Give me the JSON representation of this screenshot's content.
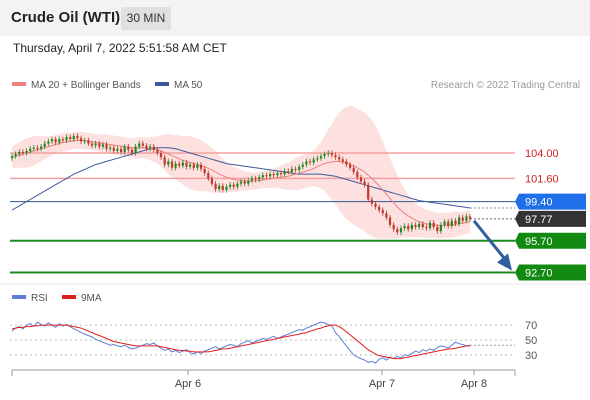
{
  "header": {
    "title": "Crude Oil (WTI)",
    "timeframe": "30 MIN",
    "datetime": "Thursday, April 7, 2022 5:51:58 AM CET"
  },
  "legend": {
    "ma20": "MA 20 + Bollinger Bands",
    "ma50": "MA 50",
    "credit": "Research © 2022 Trading Central",
    "rsi": "RSI",
    "rsi_ma": "9MA"
  },
  "colors": {
    "ma20": "#f08080",
    "ma50": "#3c5a9a",
    "band": "#fde0e0",
    "resistance": "#f5a0a0",
    "pivot": "#2b5797",
    "support": "#1e8a1e",
    "current": "#333333",
    "arrow": "#2f5f9e",
    "rsi": "#5b7fd6",
    "rsi_ma": "#e02020",
    "candle_up": "#1e8a1e",
    "candle_down": "#c0392b"
  },
  "chart_data": [
    {
      "type": "candlestick",
      "title": "",
      "ylim": [
        91.8,
        109.2
      ],
      "x_ticks": [
        "Apr 6",
        "Apr 7",
        "Apr 8"
      ],
      "levels": [
        {
          "name": "r2",
          "value": 104.0,
          "label": "104.00",
          "kind": "resistance"
        },
        {
          "name": "r1",
          "value": 101.6,
          "label": "101.60",
          "kind": "resistance"
        },
        {
          "name": "pivot",
          "value": 99.4,
          "label": "99.40",
          "kind": "pivot"
        },
        {
          "name": "current",
          "value": 97.77,
          "label": "97.77",
          "kind": "current"
        },
        {
          "name": "s1",
          "value": 95.7,
          "label": "95.70",
          "kind": "support"
        },
        {
          "name": "s2",
          "value": 92.7,
          "label": "92.70",
          "kind": "support"
        }
      ],
      "close": [
        103.7,
        103.9,
        104.1,
        104.0,
        104.2,
        104.4,
        104.5,
        104.4,
        104.6,
        104.9,
        105.1,
        105.3,
        105.0,
        105.3,
        105.2,
        105.5,
        105.3,
        105.6,
        105.4,
        105.1,
        105.2,
        104.9,
        104.7,
        104.9,
        104.6,
        104.8,
        104.4,
        104.5,
        104.2,
        104.4,
        104.1,
        104.6,
        104.3,
        104.0,
        104.6,
        104.9,
        104.7,
        104.4,
        104.6,
        104.3,
        104.0,
        103.6,
        102.9,
        103.2,
        102.6,
        103.0,
        102.8,
        103.1,
        102.7,
        102.9,
        102.6,
        102.9,
        102.5,
        102.1,
        101.6,
        101.1,
        100.6,
        100.9,
        100.5,
        100.8,
        101.0,
        100.8,
        101.1,
        101.3,
        101.1,
        101.4,
        101.6,
        101.5,
        101.7,
        101.9,
        101.8,
        102.0,
        101.9,
        102.1,
        102.0,
        102.3,
        102.2,
        102.5,
        102.4,
        102.7,
        102.9,
        103.2,
        103.1,
        103.4,
        103.5,
        103.7,
        103.9,
        104.0,
        103.8,
        103.6,
        103.4,
        103.2,
        102.9,
        102.6,
        102.2,
        101.7,
        101.3,
        101.0,
        99.6,
        99.2,
        98.9,
        98.6,
        98.3,
        97.9,
        97.2,
        96.8,
        96.5,
        96.9,
        97.1,
        96.8,
        97.2,
        97.0,
        97.3,
        97.0,
        96.9,
        97.4,
        97.0,
        96.6,
        97.2,
        97.5,
        97.1,
        97.6,
        97.3,
        97.9,
        97.6,
        98.0,
        97.77
      ],
      "ma20": [
        103.6,
        103.7,
        103.8,
        103.9,
        104.0,
        104.1,
        104.2,
        104.3,
        104.4,
        104.5,
        104.6,
        104.7,
        104.8,
        104.9,
        105.0,
        105.05,
        105.1,
        105.15,
        105.2,
        105.2,
        105.15,
        105.1,
        105.05,
        105.0,
        104.95,
        104.9,
        104.85,
        104.8,
        104.75,
        104.7,
        104.65,
        104.6,
        104.55,
        104.5,
        104.45,
        104.5,
        104.5,
        104.45,
        104.4,
        104.35,
        104.3,
        104.2,
        104.05,
        103.9,
        103.75,
        103.6,
        103.45,
        103.3,
        103.2,
        103.1,
        103.0,
        102.9,
        102.8,
        102.7,
        102.55,
        102.4,
        102.2,
        102.0,
        101.85,
        101.7,
        101.6,
        101.5,
        101.45,
        101.4,
        101.35,
        101.35,
        101.35,
        101.35,
        101.4,
        101.45,
        101.5,
        101.55,
        101.6,
        101.65,
        101.7,
        101.75,
        101.8,
        101.9,
        102.0,
        102.1,
        102.2,
        102.3,
        102.4,
        102.55,
        102.7,
        102.85,
        103.0,
        103.1,
        103.15,
        103.2,
        103.2,
        103.15,
        103.05,
        102.95,
        102.8,
        102.6,
        102.4,
        102.2,
        101.9,
        101.6,
        101.25,
        100.9,
        100.5,
        100.1,
        99.7,
        99.3,
        98.9,
        98.6,
        98.3,
        98.05,
        97.85,
        97.65,
        97.5,
        97.4,
        97.3,
        97.25,
        97.2,
        97.15,
        97.15,
        97.15,
        97.15,
        97.2,
        97.25,
        97.3,
        97.35,
        97.45,
        97.5
      ],
      "ma50": [
        98.6,
        98.8,
        99.0,
        99.2,
        99.4,
        99.6,
        99.8,
        100.0,
        100.2,
        100.4,
        100.6,
        100.8,
        101.0,
        101.2,
        101.4,
        101.6,
        101.8,
        102.0,
        102.15,
        102.3,
        102.45,
        102.6,
        102.75,
        102.9,
        103.0,
        103.1,
        103.2,
        103.3,
        103.4,
        103.5,
        103.6,
        103.7,
        103.8,
        103.9,
        104.0,
        104.1,
        104.2,
        104.3,
        104.4,
        104.45,
        104.5,
        104.5,
        104.5,
        104.5,
        104.45,
        104.4,
        104.3,
        104.2,
        104.1,
        104.0,
        103.9,
        103.8,
        103.7,
        103.6,
        103.5,
        103.4,
        103.3,
        103.2,
        103.1,
        103.0,
        102.95,
        102.9,
        102.85,
        102.8,
        102.75,
        102.7,
        102.65,
        102.6,
        102.55,
        102.5,
        102.45,
        102.4,
        102.35,
        102.3,
        102.25,
        102.2,
        102.15,
        102.1,
        102.05,
        102.0,
        102.0,
        102.0,
        102.0,
        102.0,
        102.0,
        102.0,
        101.95,
        101.9,
        101.85,
        101.8,
        101.7,
        101.6,
        101.5,
        101.4,
        101.3,
        101.2,
        101.1,
        101.0,
        100.9,
        100.8,
        100.7,
        100.6,
        100.5,
        100.4,
        100.3,
        100.2,
        100.1,
        100.0,
        99.9,
        99.8,
        99.7,
        99.6,
        99.5,
        99.45,
        99.4,
        99.35,
        99.3,
        99.25,
        99.2,
        99.15,
        99.1,
        99.05,
        99.0,
        98.95,
        98.9,
        98.85,
        98.8
      ],
      "band_width": [
        1.0,
        1.1,
        1.2,
        1.3,
        1.4,
        1.4,
        1.4,
        1.3,
        1.2,
        1.1,
        1.0,
        0.9,
        0.9,
        0.9,
        0.9,
        0.9,
        0.8,
        0.8,
        0.8,
        0.8,
        0.8,
        0.8,
        0.8,
        0.8,
        0.8,
        0.9,
        0.9,
        0.9,
        0.9,
        0.9,
        0.9,
        0.9,
        0.9,
        0.9,
        1.0,
        1.0,
        1.0,
        1.0,
        1.1,
        1.2,
        1.3,
        1.5,
        1.7,
        1.9,
        2.0,
        2.1,
        2.2,
        2.3,
        2.4,
        2.5,
        2.5,
        2.5,
        2.4,
        2.3,
        2.2,
        2.1,
        2.0,
        1.8,
        1.6,
        1.4,
        1.3,
        1.2,
        1.1,
        1.0,
        0.9,
        0.9,
        0.8,
        0.8,
        0.8,
        0.8,
        0.8,
        0.9,
        0.9,
        1.0,
        1.1,
        1.2,
        1.3,
        1.4,
        1.5,
        1.6,
        1.6,
        1.6,
        1.6,
        1.7,
        1.9,
        2.2,
        2.6,
        3.1,
        3.6,
        4.1,
        4.6,
        5.0,
        5.3,
        5.5,
        5.6,
        5.6,
        5.6,
        5.6,
        5.6,
        5.5,
        5.3,
        5.0,
        4.6,
        4.2,
        3.8,
        3.4,
        3.0,
        2.6,
        2.3,
        2.0,
        1.8,
        1.6,
        1.5,
        1.4,
        1.3,
        1.3,
        1.2,
        1.2,
        1.2,
        1.2,
        1.2,
        1.2,
        1.2,
        1.1,
        1.1,
        1.1,
        1.1
      ],
      "projection": {
        "from": 97.77,
        "to": 92.7
      }
    },
    {
      "type": "line",
      "title": "",
      "ylim": [
        15,
        85
      ],
      "y_ticks": [
        70,
        50,
        30
      ],
      "series": [
        {
          "name": "RSI",
          "values": [
            62,
            66,
            68,
            65,
            70,
            72,
            68,
            74,
            71,
            69,
            73,
            70,
            67,
            72,
            69,
            71,
            68,
            65,
            63,
            60,
            58,
            56,
            54,
            51,
            49,
            47,
            45,
            43,
            44,
            42,
            41,
            43,
            40,
            38,
            39,
            41,
            43,
            45,
            44,
            46,
            42,
            39,
            36,
            38,
            34,
            36,
            33,
            35,
            37,
            33,
            31,
            34,
            32,
            35,
            37,
            39,
            41,
            38,
            40,
            42,
            44,
            43,
            41,
            45,
            47,
            49,
            46,
            48,
            50,
            52,
            51,
            53,
            55,
            52,
            54,
            56,
            58,
            60,
            62,
            64,
            63,
            66,
            68,
            70,
            72,
            74,
            73,
            71,
            69,
            60,
            55,
            48,
            42,
            36,
            30,
            27,
            25,
            23,
            20,
            21,
            19,
            24,
            26,
            23,
            27,
            25,
            28,
            26,
            30,
            29,
            32,
            35,
            33,
            37,
            35,
            38,
            36,
            40,
            42,
            41,
            39,
            43,
            47,
            45,
            44,
            42,
            43
          ]
        },
        {
          "name": "9MA",
          "values": [
            65,
            66,
            67,
            67,
            68,
            68,
            69,
            69,
            70,
            70,
            70,
            70,
            70,
            70,
            70,
            70,
            69,
            68,
            67,
            66,
            64,
            62,
            60,
            58,
            56,
            54,
            52,
            50,
            48,
            47,
            46,
            45,
            44,
            43,
            42,
            42,
            42,
            42,
            42,
            42,
            42,
            41,
            40,
            39,
            38,
            37,
            36,
            36,
            35,
            35,
            34,
            34,
            34,
            34,
            34,
            35,
            36,
            37,
            38,
            38,
            39,
            40,
            41,
            42,
            43,
            44,
            45,
            46,
            47,
            48,
            49,
            50,
            51,
            52,
            53,
            54,
            55,
            56,
            57,
            58,
            59,
            60,
            62,
            63,
            65,
            66,
            68,
            69,
            70,
            70,
            68,
            65,
            61,
            57,
            53,
            49,
            45,
            41,
            37,
            34,
            31,
            29,
            28,
            27,
            26,
            25,
            25,
            25,
            26,
            27,
            28,
            29,
            30,
            31,
            32,
            33,
            34,
            35,
            36,
            37,
            38,
            38,
            39,
            40,
            41,
            42,
            42
          ]
        }
      ]
    }
  ]
}
